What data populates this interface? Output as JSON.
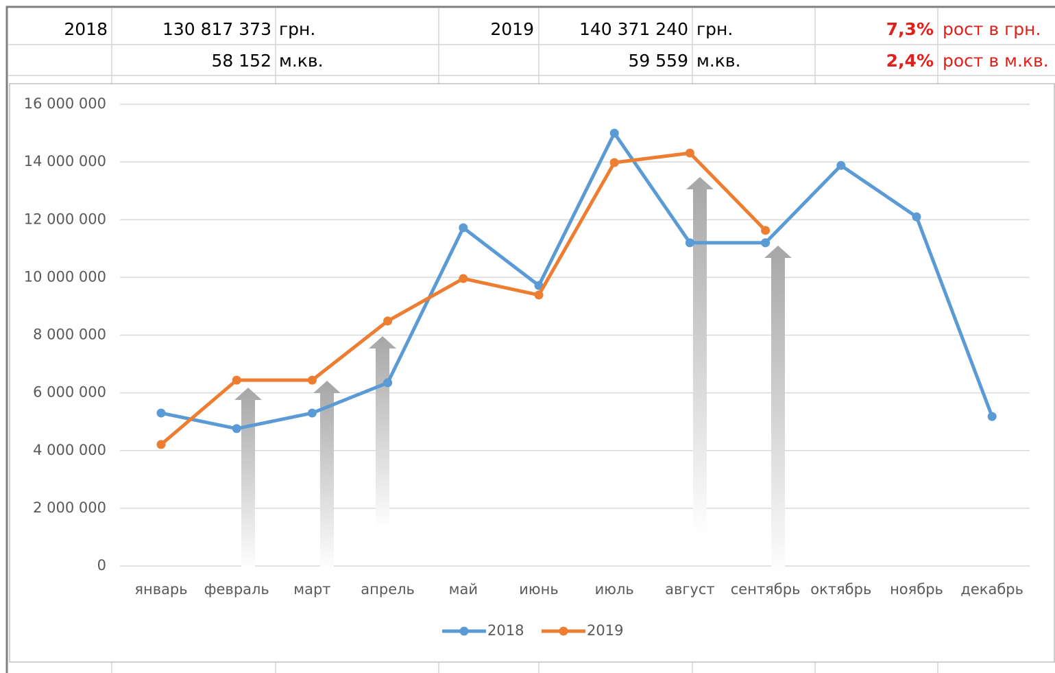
{
  "table": {
    "rows": [
      {
        "year_a": "2018",
        "amount_a": "130 817 373",
        "unit_a": "грн.",
        "year_b": "2019",
        "amount_b": "140 371 240",
        "unit_b": "грн.",
        "growth": "7,3%",
        "growth_label": "рост в грн."
      },
      {
        "amount_a": "58 152",
        "unit_a": "м.кв.",
        "amount_b": "59 559",
        "unit_b": "м.кв.",
        "growth": "2,4%",
        "growth_label": "рост в м.кв."
      }
    ]
  },
  "chart_data": {
    "type": "line",
    "categories": [
      "январь",
      "февраль",
      "март",
      "апрель",
      "май",
      "июнь",
      "июль",
      "август",
      "сентябрь",
      "октябрь",
      "ноябрь",
      "декабрь"
    ],
    "series": [
      {
        "name": "2018",
        "color": "#5b9bd5",
        "values": [
          5300000,
          4760000,
          5300000,
          6350000,
          11720000,
          9720000,
          15000000,
          11200000,
          11200000,
          13880000,
          12100000,
          5180000
        ]
      },
      {
        "name": "2019",
        "color": "#ed7d31",
        "values": [
          4210000,
          6440000,
          6440000,
          8490000,
          9960000,
          9390000,
          13980000,
          14310000,
          11630000,
          null,
          null,
          null
        ]
      }
    ],
    "ylim": [
      0,
      16000000
    ],
    "yticks": [
      0,
      {
        "value": 2000000,
        "label": "2 000 000"
      },
      {
        "value": 4000000,
        "label": "4 000 000"
      },
      {
        "value": 6000000,
        "label": "6 000 000"
      },
      {
        "value": 8000000,
        "label": "8 000 000"
      },
      {
        "value": 10000000,
        "label": "10 000 000"
      },
      {
        "value": 12000000,
        "label": "12 000 000"
      },
      {
        "value": 14000000,
        "label": "14 000 000"
      },
      {
        "value": 16000000,
        "label": "16 000 000"
      }
    ],
    "grid": true,
    "legend": "bottom"
  }
}
